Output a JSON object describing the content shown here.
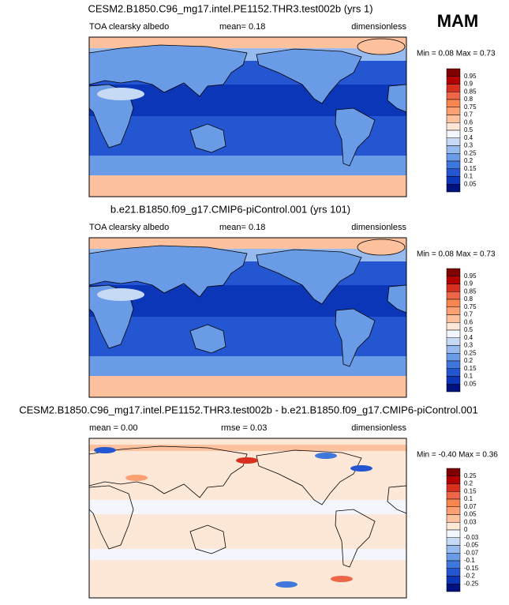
{
  "season": "MAM",
  "panels": [
    {
      "title": "CESM2.B1850.C96_mg17.intel.PE1152.THR3.test002b (yrs 1)",
      "left": "TOA clearsky albedo",
      "center": "mean=  0.18",
      "right": "dimensionless",
      "minmax": "Min =  0.08 Max =  0.73",
      "colorbar": {
        "labels": [
          "0.95",
          "0.9",
          "0.85",
          "0.8",
          "0.75",
          "0.7",
          "0.6",
          "0.5",
          "0.4",
          "0.3",
          "0.25",
          "0.2",
          "0.15",
          "0.1",
          "0.05"
        ]
      }
    },
    {
      "title": "b.e21.B1850.f09_g17.CMIP6-piControl.001 (yrs 101)",
      "left": "TOA clearsky albedo",
      "center": "mean=  0.18",
      "right": "dimensionless",
      "minmax": "Min =  0.08 Max =  0.73",
      "colorbar": {
        "labels": [
          "0.95",
          "0.9",
          "0.85",
          "0.8",
          "0.75",
          "0.7",
          "0.6",
          "0.5",
          "0.4",
          "0.3",
          "0.25",
          "0.2",
          "0.15",
          "0.1",
          "0.05"
        ]
      }
    },
    {
      "title": "CESM2.B1850.C96_mg17.intel.PE1152.THR3.test002b - b.e21.B1850.f09_g17.CMIP6-piControl.001",
      "left": "mean =  0.00",
      "center": "rmse =  0.03",
      "right": "dimensionless",
      "minmax": "Min = -0.40 Max =  0.36",
      "colorbar": {
        "labels": [
          "0.25",
          "0.2",
          "0.15",
          "0.1",
          "0.07",
          "0.05",
          "0.03",
          "0",
          "-0.03",
          "-0.05",
          "-0.07",
          "-0.1",
          "-0.15",
          "-0.2",
          "-0.25"
        ]
      }
    }
  ]
}
